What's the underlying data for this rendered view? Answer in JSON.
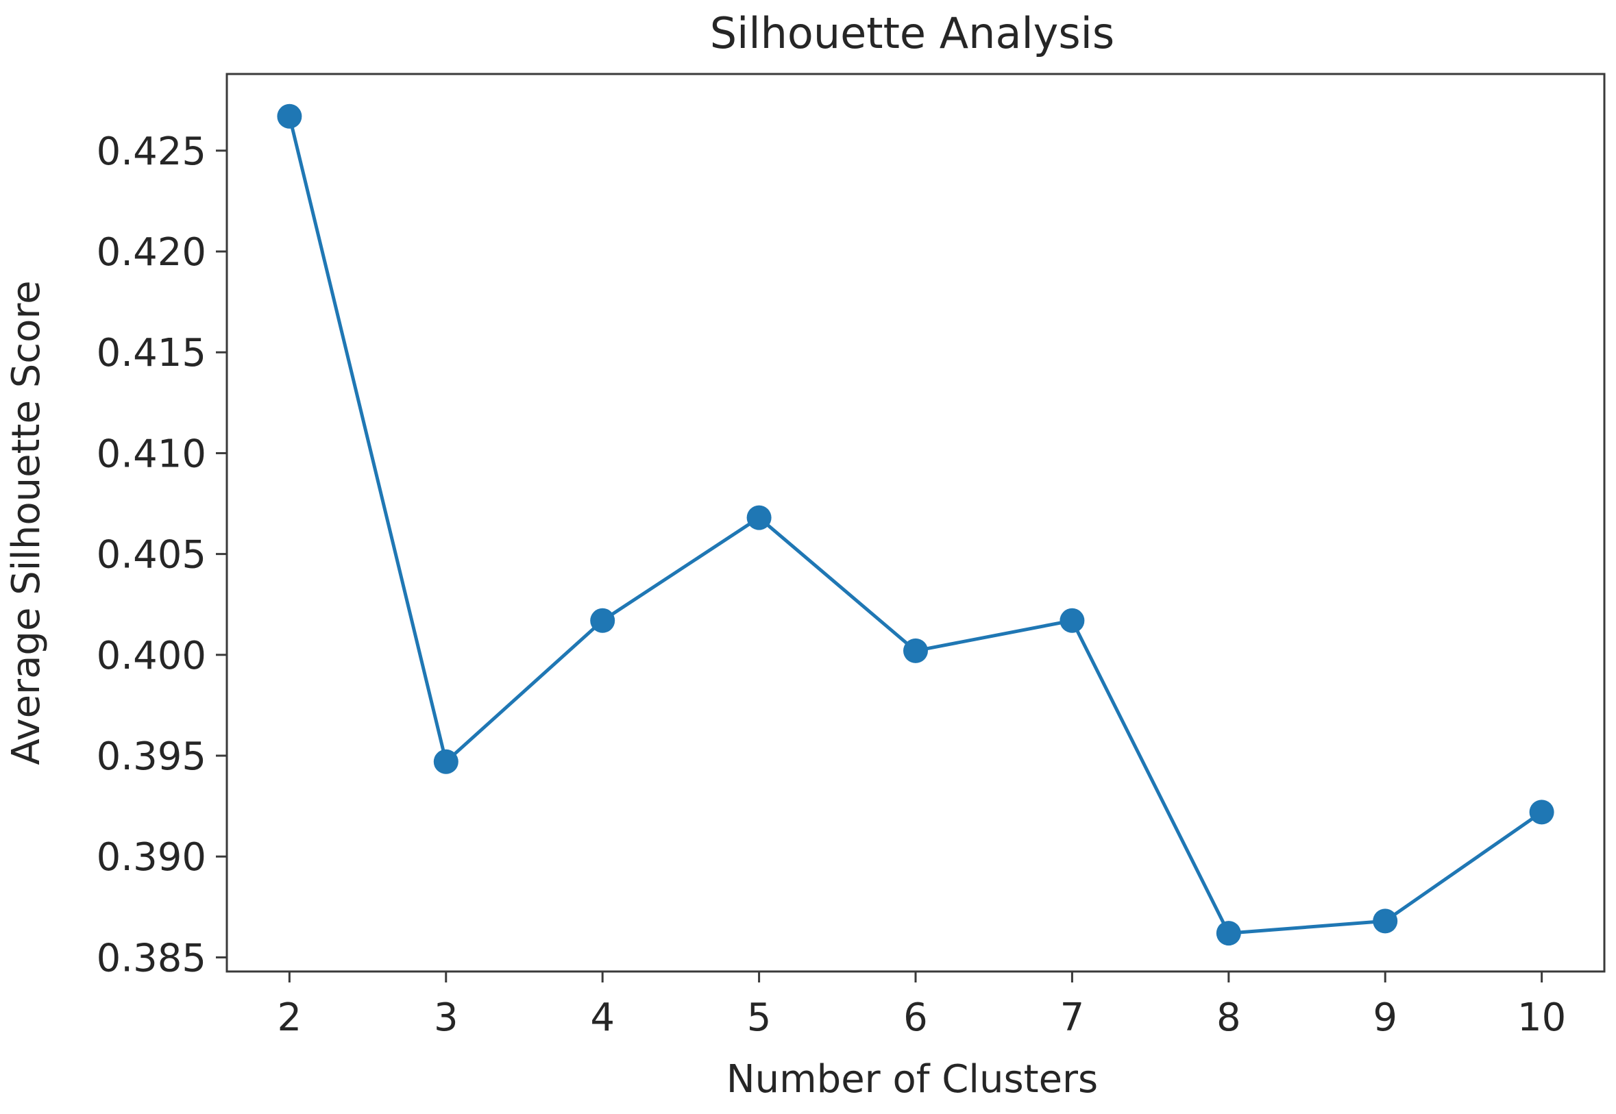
{
  "chart_data": {
    "type": "line",
    "title": "Silhouette Analysis",
    "xlabel": "Number of Clusters",
    "ylabel": "Average Silhouette Score",
    "x": [
      2,
      3,
      4,
      5,
      6,
      7,
      8,
      9,
      10
    ],
    "xticks": [
      "2",
      "3",
      "4",
      "5",
      "6",
      "7",
      "8",
      "9",
      "10"
    ],
    "yticks": [
      "0.385",
      "0.390",
      "0.395",
      "0.400",
      "0.405",
      "0.410",
      "0.415",
      "0.420",
      "0.425"
    ],
    "ytick_values": [
      0.385,
      0.39,
      0.395,
      0.4,
      0.405,
      0.41,
      0.415,
      0.42,
      0.425
    ],
    "xlim": [
      1.6,
      10.4
    ],
    "ylim": [
      0.3843,
      0.4288
    ],
    "grid": false,
    "series": [
      {
        "values": [
          0.4267,
          0.3947,
          0.4017,
          0.4068,
          0.4002,
          0.4017,
          0.3862,
          0.3868,
          0.3922
        ],
        "color": "#1f77b4",
        "marker": "circle"
      }
    ]
  }
}
